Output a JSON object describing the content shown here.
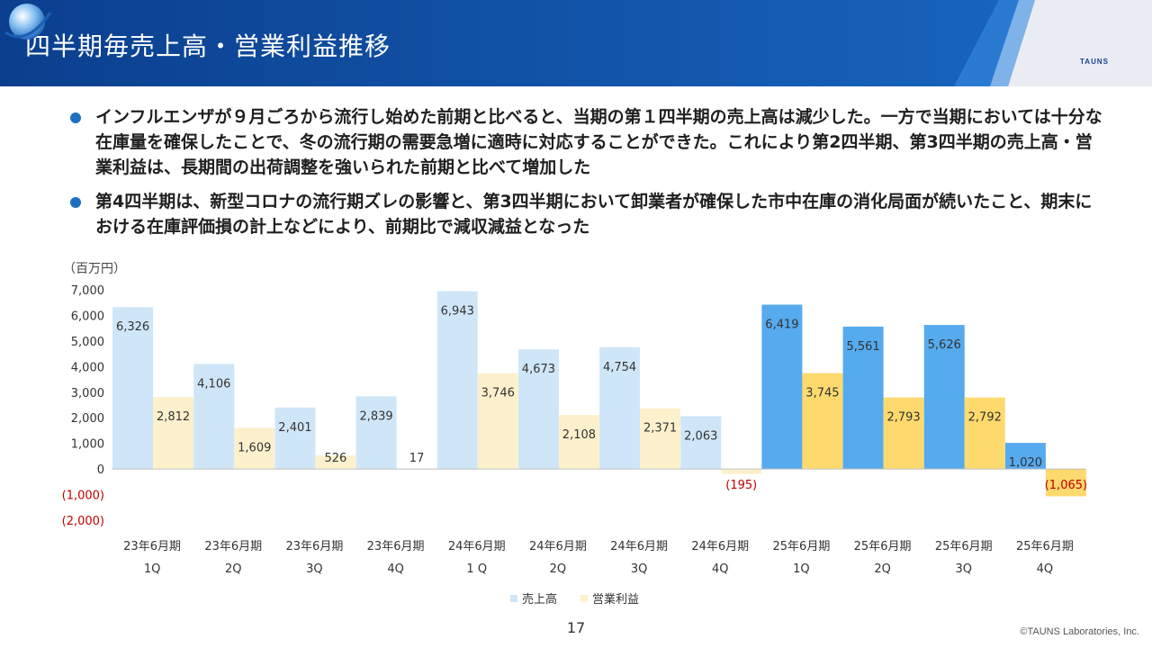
{
  "slide": {
    "title": "四半期毎売上高・営業利益推移",
    "logo_text": "TAUNS",
    "page_number": "17",
    "copyright": "©TAUNS Laboratories, Inc.",
    "bullets": [
      "インフルエンザが９月ごろから流行し始めた前期と比べると、当期の第１四半期の売上高は減少した。一方で当期においては十分な在庫量を確保したことで、冬の流行期の需要急増に適時に対応することができた。これにより第2四半期、第3四半期の売上高・営業利益は、長期間の出荷調整を強いられた前期と比べて増加した",
      "第4四半期は、新型コロナの流行期ズレの影響と、第3四半期において卸業者が確保した市中在庫の消化局面が続いたこと、期末における在庫評価損の計上などにより、前期比で減収減益となった"
    ],
    "colors": {
      "header": "#0d4fa3",
      "bullet": "#1f6fc1"
    }
  },
  "chart_data": {
    "type": "bar",
    "unit_label": "（百万円）",
    "categories": [
      [
        "23年6月期",
        "1Q"
      ],
      [
        "23年6月期",
        "2Q"
      ],
      [
        "23年6月期",
        "3Q"
      ],
      [
        "23年6月期",
        "4Q"
      ],
      [
        "24年6月期",
        "1 Q"
      ],
      [
        "24年6月期",
        "2Q"
      ],
      [
        "24年6月期",
        "3Q"
      ],
      [
        "24年6月期",
        "4Q"
      ],
      [
        "25年6月期",
        "1Q"
      ],
      [
        "25年6月期",
        "2Q"
      ],
      [
        "25年6月期",
        "3Q"
      ],
      [
        "25年6月期",
        "4Q"
      ]
    ],
    "series": [
      {
        "name": "売上高",
        "values": [
          6326,
          4106,
          2401,
          2839,
          6943,
          4673,
          4754,
          2063,
          6419,
          5561,
          5626,
          1020
        ],
        "labels": [
          "6,326",
          "4,106",
          "2,401",
          "2,839",
          "6,943",
          "4,673",
          "4,754",
          "2,063",
          "6,419",
          "5,561",
          "5,626",
          "1,020"
        ],
        "color_past": "#cfe6f8",
        "color_current": "#56aaee"
      },
      {
        "name": "営業利益",
        "values": [
          2812,
          1609,
          526,
          17,
          3746,
          2108,
          2371,
          -195,
          3745,
          2793,
          2792,
          -1065
        ],
        "labels": [
          "2,812",
          "1,609",
          "526",
          "17",
          "3,746",
          "2,108",
          "2,371",
          "(195)",
          "3,745",
          "2,793",
          "2,792",
          "(1,065)"
        ],
        "color_past": "#fdf0cc",
        "color_current": "#fed96d"
      }
    ],
    "highlight_from_index": 8,
    "ylim": [
      -2000,
      7000
    ],
    "yticks": [
      7000,
      6000,
      5000,
      4000,
      3000,
      2000,
      1000,
      0,
      -1000,
      -2000
    ],
    "ytick_labels": [
      "7,000",
      "6,000",
      "5,000",
      "4,000",
      "3,000",
      "2,000",
      "1,000",
      "0",
      "(1,000)",
      "(2,000)"
    ],
    "negative_color": "#c00000",
    "legend_position": "bottom",
    "grid": false
  }
}
